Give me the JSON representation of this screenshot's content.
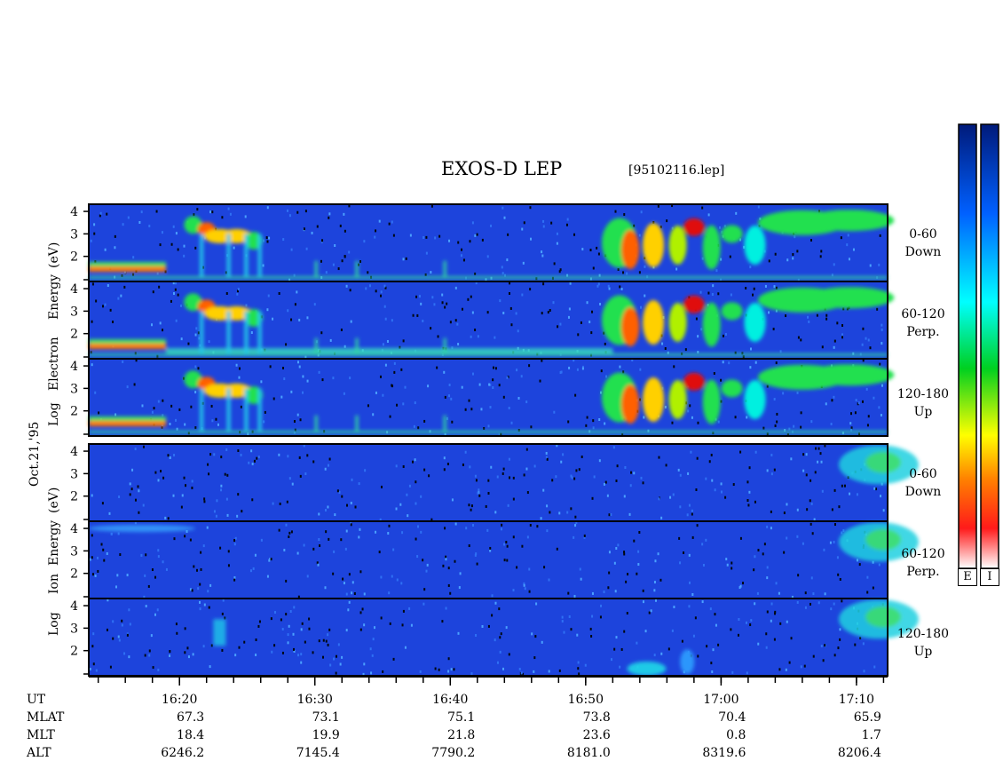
{
  "chart_data": {
    "type": "heatmap",
    "title": "EXOS-D LEP",
    "file": "[95102116.lep]",
    "date_label": "Oct.21,'95",
    "x_axis": {
      "label": "UT",
      "ticks": [
        "16:20",
        "16:30",
        "16:40",
        "16:50",
        "17:00",
        "17:10"
      ]
    },
    "electron": {
      "ylabel": "Log Electron Energy (eV)",
      "ylabel_parts": [
        "Log",
        "Electron",
        "Energy",
        "(eV)"
      ],
      "yticks": [
        "4",
        "3",
        "2"
      ],
      "panels": [
        {
          "channel": "0-60",
          "direction": "Down"
        },
        {
          "channel": "60-120",
          "direction": "Perp."
        },
        {
          "channel": "120-180",
          "direction": "Up"
        }
      ]
    },
    "ion": {
      "ylabel": "Log Ion Energy (eV)",
      "ylabel_parts": [
        "Log",
        "Ion",
        "Energy",
        "(eV)"
      ],
      "yticks": [
        "4",
        "3",
        "2"
      ],
      "panels": [
        {
          "channel": "0-60",
          "direction": "Down"
        },
        {
          "channel": "60-120",
          "direction": "Perp."
        },
        {
          "channel": "120-180",
          "direction": "Up"
        }
      ]
    },
    "orbit_rows": [
      {
        "label": "MLAT",
        "values": [
          "67.3",
          "73.1",
          "75.1",
          "73.8",
          "70.4",
          "65.9"
        ]
      },
      {
        "label": "MLT",
        "values": [
          "18.4",
          "19.9",
          "21.8",
          "23.6",
          "0.8",
          "1.7"
        ]
      },
      {
        "label": "ALT",
        "values": [
          "6246.2",
          "7145.4",
          "7790.2",
          "8181.0",
          "8319.6",
          "8206.4"
        ]
      }
    ],
    "colorbars": [
      {
        "label": "E"
      },
      {
        "label": "I"
      }
    ],
    "colors": {
      "background": "#1a3fd8",
      "scale": [
        "#ffffff",
        "#ff1a1a",
        "#ffb000",
        "#ffff00",
        "#00d020",
        "#00ffff",
        "#0060ff",
        "#001a7a"
      ]
    }
  }
}
